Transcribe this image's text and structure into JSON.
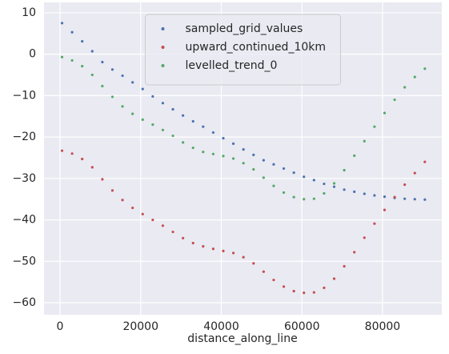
{
  "chart_data": {
    "type": "scatter",
    "xlabel": "distance_along_line",
    "x": [
      500,
      3000,
      5500,
      8000,
      10500,
      13000,
      15500,
      18000,
      20500,
      23000,
      25500,
      28000,
      30500,
      33000,
      35500,
      38000,
      40500,
      43000,
      45500,
      48000,
      50500,
      53000,
      55500,
      58000,
      60500,
      63000,
      65500,
      68000,
      70500,
      73000,
      75500,
      78000,
      80500,
      83000,
      85500,
      88000,
      90500
    ],
    "series": [
      {
        "name": "sampled_grid_values",
        "color": "#4c72b0",
        "values": [
          7.5,
          5.3,
          3.1,
          0.7,
          -1.9,
          -3.7,
          -5.2,
          -6.8,
          -8.4,
          -10.2,
          -11.8,
          -13.3,
          -14.8,
          -16.2,
          -17.5,
          -18.9,
          -20.3,
          -21.6,
          -23.0,
          -24.3,
          -25.6,
          -26.6,
          -27.6,
          -28.6,
          -29.6,
          -30.4,
          -31.3,
          -32.0,
          -32.7,
          -33.2,
          -33.7,
          -34.1,
          -34.4,
          -34.7,
          -34.9,
          -35.0,
          -35.1
        ]
      },
      {
        "name": "upward_continued_10km",
        "color": "#c44e52",
        "values": [
          -23.3,
          -24.0,
          -25.3,
          -27.3,
          -30.2,
          -32.9,
          -35.2,
          -37.1,
          -38.6,
          -40.0,
          -41.4,
          -42.9,
          -44.4,
          -45.6,
          -46.4,
          -47.0,
          -47.5,
          -48.0,
          -49.0,
          -50.5,
          -52.5,
          -54.5,
          -56.1,
          -57.2,
          -57.6,
          -57.5,
          -56.4,
          -54.2,
          -51.2,
          -47.8,
          -44.3,
          -40.9,
          -37.6,
          -34.5,
          -31.5,
          -28.7,
          -26.0
        ]
      },
      {
        "name": "levelled_trend_0",
        "color": "#55a868",
        "values": [
          -0.7,
          -1.5,
          -2.9,
          -5.0,
          -7.7,
          -10.3,
          -12.6,
          -14.4,
          -15.8,
          -17.0,
          -18.3,
          -19.7,
          -21.3,
          -22.6,
          -23.6,
          -24.1,
          -24.6,
          -25.2,
          -26.3,
          -27.8,
          -29.8,
          -31.8,
          -33.4,
          -34.5,
          -35.0,
          -34.9,
          -33.6,
          -31.2,
          -28.0,
          -24.5,
          -21.0,
          -17.5,
          -14.2,
          -11.0,
          -8.0,
          -5.5,
          -3.5
        ]
      }
    ],
    "xlim": [
      -3970,
      94700
    ],
    "ylim": [
      -62.9,
      12.5
    ],
    "xticks": [
      0,
      20000,
      40000,
      60000,
      80000
    ],
    "yticks": [
      10,
      0,
      {
        "value": -10,
        "label": "−10"
      },
      {
        "value": -20,
        "label": "−20"
      },
      {
        "value": -30,
        "label": "−30"
      },
      {
        "value": -40,
        "label": "−40"
      },
      {
        "value": -50,
        "label": "−50"
      },
      {
        "value": -60,
        "label": "−60"
      }
    ],
    "grid": true,
    "legend": "upper center"
  }
}
